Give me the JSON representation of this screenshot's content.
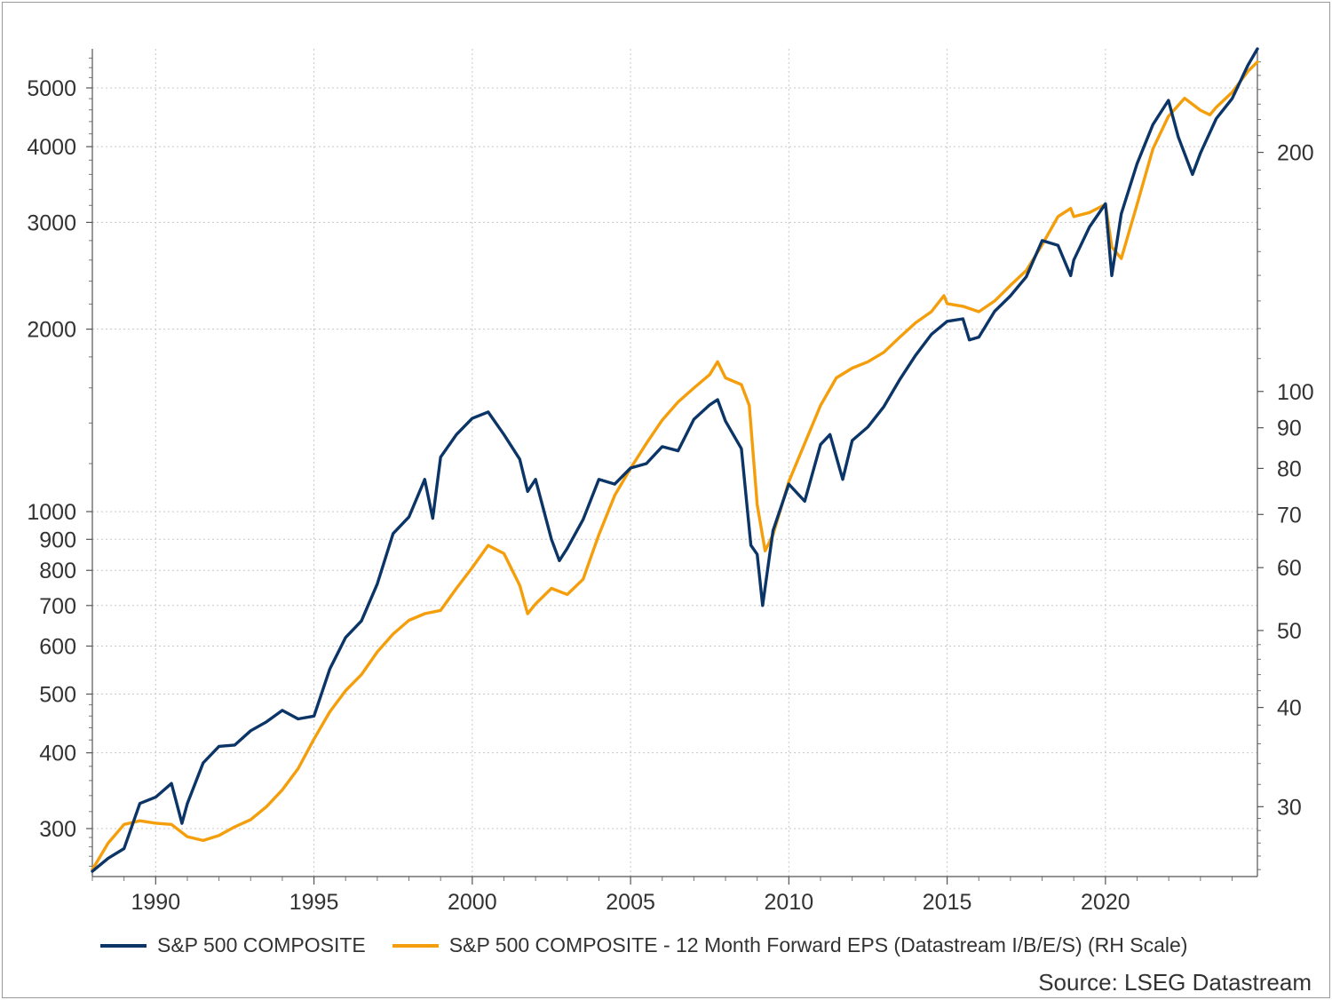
{
  "chart_data": {
    "type": "line",
    "source": "Source: LSEG Datastream",
    "x_axis": {
      "ticks": [
        1990,
        1995,
        2000,
        2005,
        2010,
        2015,
        2020
      ],
      "range": [
        1988.0,
        2024.8
      ]
    },
    "y_left": {
      "scale": "log",
      "range": [
        250,
        5800
      ],
      "ticks": [
        300,
        400,
        500,
        600,
        700,
        800,
        900,
        1000,
        2000,
        3000,
        4000,
        5000
      ]
    },
    "y_right": {
      "scale": "log",
      "range": [
        24.5,
        270
      ],
      "ticks": [
        30,
        40,
        50,
        60,
        70,
        80,
        90,
        100,
        200
      ]
    },
    "grid": true,
    "legend_position": "bottom",
    "series": [
      {
        "name": "S&P 500 COMPOSITE",
        "axis": "left",
        "color": "#0c3567",
        "points": [
          [
            1988.0,
            255
          ],
          [
            1988.5,
            268
          ],
          [
            1989.0,
            278
          ],
          [
            1989.5,
            330
          ],
          [
            1990.0,
            338
          ],
          [
            1990.5,
            356
          ],
          [
            1990.83,
            306
          ],
          [
            1991.0,
            330
          ],
          [
            1991.5,
            385
          ],
          [
            1992.0,
            410
          ],
          [
            1992.5,
            412
          ],
          [
            1993.0,
            435
          ],
          [
            1993.5,
            450
          ],
          [
            1994.0,
            470
          ],
          [
            1994.5,
            455
          ],
          [
            1995.0,
            460
          ],
          [
            1995.5,
            550
          ],
          [
            1996.0,
            620
          ],
          [
            1996.5,
            660
          ],
          [
            1997.0,
            760
          ],
          [
            1997.5,
            920
          ],
          [
            1998.0,
            980
          ],
          [
            1998.5,
            1130
          ],
          [
            1998.75,
            975
          ],
          [
            1999.0,
            1230
          ],
          [
            1999.5,
            1340
          ],
          [
            2000.0,
            1425
          ],
          [
            2000.5,
            1460
          ],
          [
            2001.0,
            1340
          ],
          [
            2001.5,
            1220
          ],
          [
            2001.75,
            1080
          ],
          [
            2002.0,
            1130
          ],
          [
            2002.5,
            900
          ],
          [
            2002.75,
            830
          ],
          [
            2003.0,
            870
          ],
          [
            2003.5,
            970
          ],
          [
            2004.0,
            1130
          ],
          [
            2004.5,
            1110
          ],
          [
            2005.0,
            1180
          ],
          [
            2005.5,
            1200
          ],
          [
            2006.0,
            1280
          ],
          [
            2006.5,
            1260
          ],
          [
            2007.0,
            1420
          ],
          [
            2007.5,
            1500
          ],
          [
            2007.75,
            1530
          ],
          [
            2008.0,
            1410
          ],
          [
            2008.5,
            1270
          ],
          [
            2008.8,
            880
          ],
          [
            2009.0,
            850
          ],
          [
            2009.17,
            700
          ],
          [
            2009.5,
            930
          ],
          [
            2010.0,
            1110
          ],
          [
            2010.5,
            1040
          ],
          [
            2011.0,
            1290
          ],
          [
            2011.3,
            1340
          ],
          [
            2011.7,
            1130
          ],
          [
            2012.0,
            1310
          ],
          [
            2012.5,
            1380
          ],
          [
            2013.0,
            1490
          ],
          [
            2013.5,
            1650
          ],
          [
            2014.0,
            1810
          ],
          [
            2014.5,
            1960
          ],
          [
            2015.0,
            2060
          ],
          [
            2015.5,
            2080
          ],
          [
            2015.7,
            1920
          ],
          [
            2016.0,
            1940
          ],
          [
            2016.5,
            2140
          ],
          [
            2017.0,
            2270
          ],
          [
            2017.5,
            2440
          ],
          [
            2018.0,
            2800
          ],
          [
            2018.5,
            2750
          ],
          [
            2018.9,
            2450
          ],
          [
            2019.0,
            2600
          ],
          [
            2019.5,
            2950
          ],
          [
            2020.0,
            3220
          ],
          [
            2020.2,
            2450
          ],
          [
            2020.5,
            3100
          ],
          [
            2021.0,
            3750
          ],
          [
            2021.5,
            4350
          ],
          [
            2021.99,
            4770
          ],
          [
            2022.3,
            4150
          ],
          [
            2022.75,
            3600
          ],
          [
            2023.0,
            3900
          ],
          [
            2023.5,
            4450
          ],
          [
            2024.0,
            4800
          ],
          [
            2024.5,
            5450
          ],
          [
            2024.8,
            5800
          ]
        ]
      },
      {
        "name": "S&P 500 COMPOSITE - 12 Month Forward EPS (Datastream I/B/E/S) (RH Scale)",
        "axis": "right",
        "color": "#f59e0b",
        "points": [
          [
            1988.0,
            25.0
          ],
          [
            1988.5,
            27.0
          ],
          [
            1989.0,
            28.5
          ],
          [
            1989.5,
            28.8
          ],
          [
            1990.0,
            28.6
          ],
          [
            1990.5,
            28.5
          ],
          [
            1991.0,
            27.5
          ],
          [
            1991.5,
            27.2
          ],
          [
            1992.0,
            27.6
          ],
          [
            1992.5,
            28.3
          ],
          [
            1993.0,
            28.9
          ],
          [
            1993.5,
            30.0
          ],
          [
            1994.0,
            31.5
          ],
          [
            1994.5,
            33.5
          ],
          [
            1995.0,
            36.5
          ],
          [
            1995.5,
            39.5
          ],
          [
            1996.0,
            42.0
          ],
          [
            1996.5,
            44.0
          ],
          [
            1997.0,
            47.0
          ],
          [
            1997.5,
            49.5
          ],
          [
            1998.0,
            51.5
          ],
          [
            1998.5,
            52.5
          ],
          [
            1999.0,
            53.0
          ],
          [
            1999.5,
            56.5
          ],
          [
            2000.0,
            60.0
          ],
          [
            2000.5,
            64.0
          ],
          [
            2001.0,
            62.5
          ],
          [
            2001.5,
            57.0
          ],
          [
            2001.75,
            52.5
          ],
          [
            2002.0,
            54.0
          ],
          [
            2002.5,
            56.5
          ],
          [
            2003.0,
            55.5
          ],
          [
            2003.5,
            58.0
          ],
          [
            2004.0,
            66.0
          ],
          [
            2004.5,
            74.0
          ],
          [
            2005.0,
            80.0
          ],
          [
            2005.5,
            86.0
          ],
          [
            2006.0,
            92.0
          ],
          [
            2006.5,
            97.0
          ],
          [
            2007.0,
            101.0
          ],
          [
            2007.5,
            105.0
          ],
          [
            2007.75,
            109.0
          ],
          [
            2008.0,
            104.0
          ],
          [
            2008.5,
            102.0
          ],
          [
            2008.75,
            96.0
          ],
          [
            2009.0,
            72.0
          ],
          [
            2009.25,
            63.0
          ],
          [
            2009.5,
            66.0
          ],
          [
            2010.0,
            77.0
          ],
          [
            2010.5,
            86.0
          ],
          [
            2011.0,
            96.0
          ],
          [
            2011.5,
            104.0
          ],
          [
            2012.0,
            107.0
          ],
          [
            2012.5,
            109.0
          ],
          [
            2013.0,
            112.0
          ],
          [
            2013.5,
            117.0
          ],
          [
            2014.0,
            122.0
          ],
          [
            2014.5,
            126.0
          ],
          [
            2014.9,
            132.0
          ],
          [
            2015.0,
            129.0
          ],
          [
            2015.5,
            128.0
          ],
          [
            2016.0,
            126.0
          ],
          [
            2016.5,
            130.0
          ],
          [
            2017.0,
            136.0
          ],
          [
            2017.5,
            142.0
          ],
          [
            2018.0,
            153.0
          ],
          [
            2018.5,
            166.0
          ],
          [
            2018.9,
            170.0
          ],
          [
            2019.0,
            166.0
          ],
          [
            2019.5,
            168.0
          ],
          [
            2020.0,
            172.0
          ],
          [
            2020.2,
            152.0
          ],
          [
            2020.5,
            147.0
          ],
          [
            2021.0,
            172.0
          ],
          [
            2021.5,
            202.0
          ],
          [
            2021.99,
            222.0
          ],
          [
            2022.5,
            234.0
          ],
          [
            2023.0,
            226.0
          ],
          [
            2023.3,
            223.0
          ],
          [
            2023.5,
            228.0
          ],
          [
            2024.0,
            238.0
          ],
          [
            2024.5,
            253.0
          ],
          [
            2024.8,
            260.0
          ]
        ]
      }
    ]
  }
}
